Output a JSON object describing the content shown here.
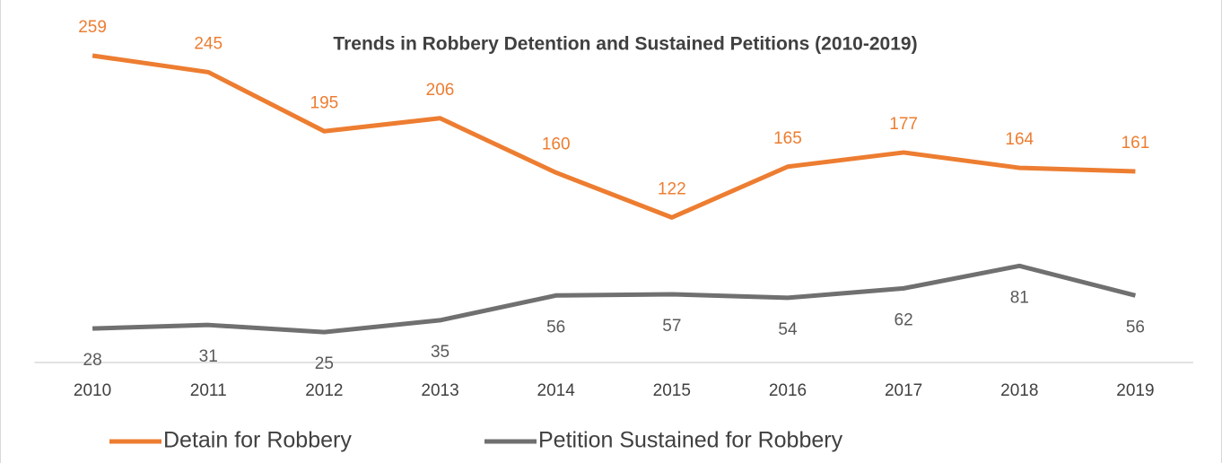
{
  "chart_data": {
    "type": "line",
    "title": "Trends in Robbery Detention and Sustained Petitions (2010-2019)",
    "categories": [
      "2010",
      "2011",
      "2012",
      "2013",
      "2014",
      "2015",
      "2016",
      "2017",
      "2018",
      "2019"
    ],
    "series": [
      {
        "name": "Detain for Robbery",
        "color": "#ed7d31",
        "values": [
          259,
          245,
          195,
          206,
          160,
          122,
          165,
          177,
          164,
          161
        ]
      },
      {
        "name": "Petition Sustained for Robbery",
        "color": "#707070",
        "values": [
          28,
          31,
          25,
          35,
          56,
          57,
          54,
          62,
          81,
          56
        ]
      }
    ],
    "ylim": [
      0,
      300
    ],
    "legend": "bottom"
  }
}
